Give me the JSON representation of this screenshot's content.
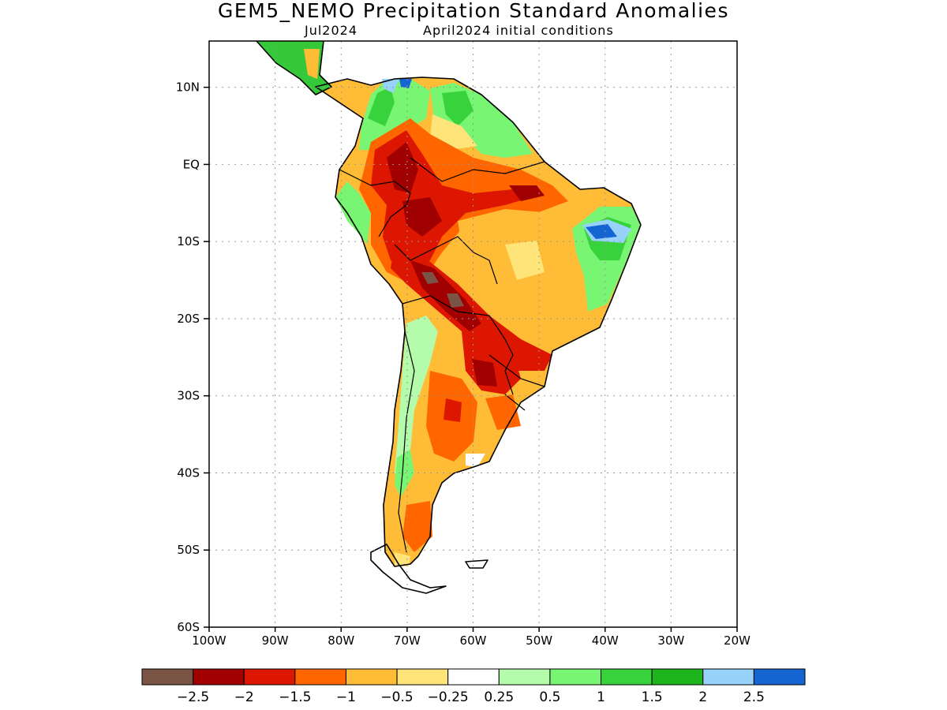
{
  "title": "GEM5_NEMO Precipitation Standard Anomalies",
  "subtitle_left": "Jul2024",
  "subtitle_right": "April2024 initial conditions",
  "map": {
    "lon_range": [
      -100,
      -20
    ],
    "lat_range": [
      -60,
      16
    ],
    "lat_ticks": [
      {
        "value": 10,
        "label": "10N"
      },
      {
        "value": 0,
        "label": "EQ"
      },
      {
        "value": -10,
        "label": "10S"
      },
      {
        "value": -20,
        "label": "20S"
      },
      {
        "value": -30,
        "label": "30S"
      },
      {
        "value": -40,
        "label": "40S"
      },
      {
        "value": -50,
        "label": "50S"
      },
      {
        "value": -60,
        "label": "60S"
      }
    ],
    "lon_ticks": [
      {
        "value": -100,
        "label": "100W"
      },
      {
        "value": -90,
        "label": "90W"
      },
      {
        "value": -80,
        "label": "80W"
      },
      {
        "value": -70,
        "label": "70W"
      },
      {
        "value": -60,
        "label": "60W"
      },
      {
        "value": -50,
        "label": "50W"
      },
      {
        "value": -40,
        "label": "40W"
      },
      {
        "value": -30,
        "label": "30W"
      },
      {
        "value": -20,
        "label": "20W"
      }
    ],
    "grid": true,
    "region": "South America"
  },
  "colorbar": {
    "colors": [
      "#7a5546",
      "#a00000",
      "#dc1600",
      "#ff6600",
      "#ffbd37",
      "#ffe479",
      "#ffffff",
      "#b4fbab",
      "#78f573",
      "#37d23c",
      "#1eb41e",
      "#96d2fa",
      "#1464d2"
    ],
    "labels": [
      "−2.5",
      "−2",
      "−1.5",
      "−1",
      "−0.5",
      "−0.25",
      "0.25",
      "0.5",
      "1",
      "1.5",
      "2",
      "2.5"
    ]
  },
  "anomaly_regions": [
    {
      "class": "wet",
      "level": 1.5,
      "area": "Colombia / Caribbean coast"
    },
    {
      "class": "wet",
      "level": 2.5,
      "area": "Northeast Brazil coast"
    },
    {
      "class": "dry",
      "level": -2.5,
      "area": "Bolivia / Peru Andes"
    },
    {
      "class": "dry",
      "level": -2,
      "area": "Peruvian Amazon"
    },
    {
      "class": "dry",
      "level": -1.5,
      "area": "Paraguay / southern Brazil"
    },
    {
      "class": "dry",
      "level": -0.5,
      "area": "Central Brazil"
    },
    {
      "class": "dry",
      "level": -1,
      "area": "Central Argentina"
    }
  ]
}
